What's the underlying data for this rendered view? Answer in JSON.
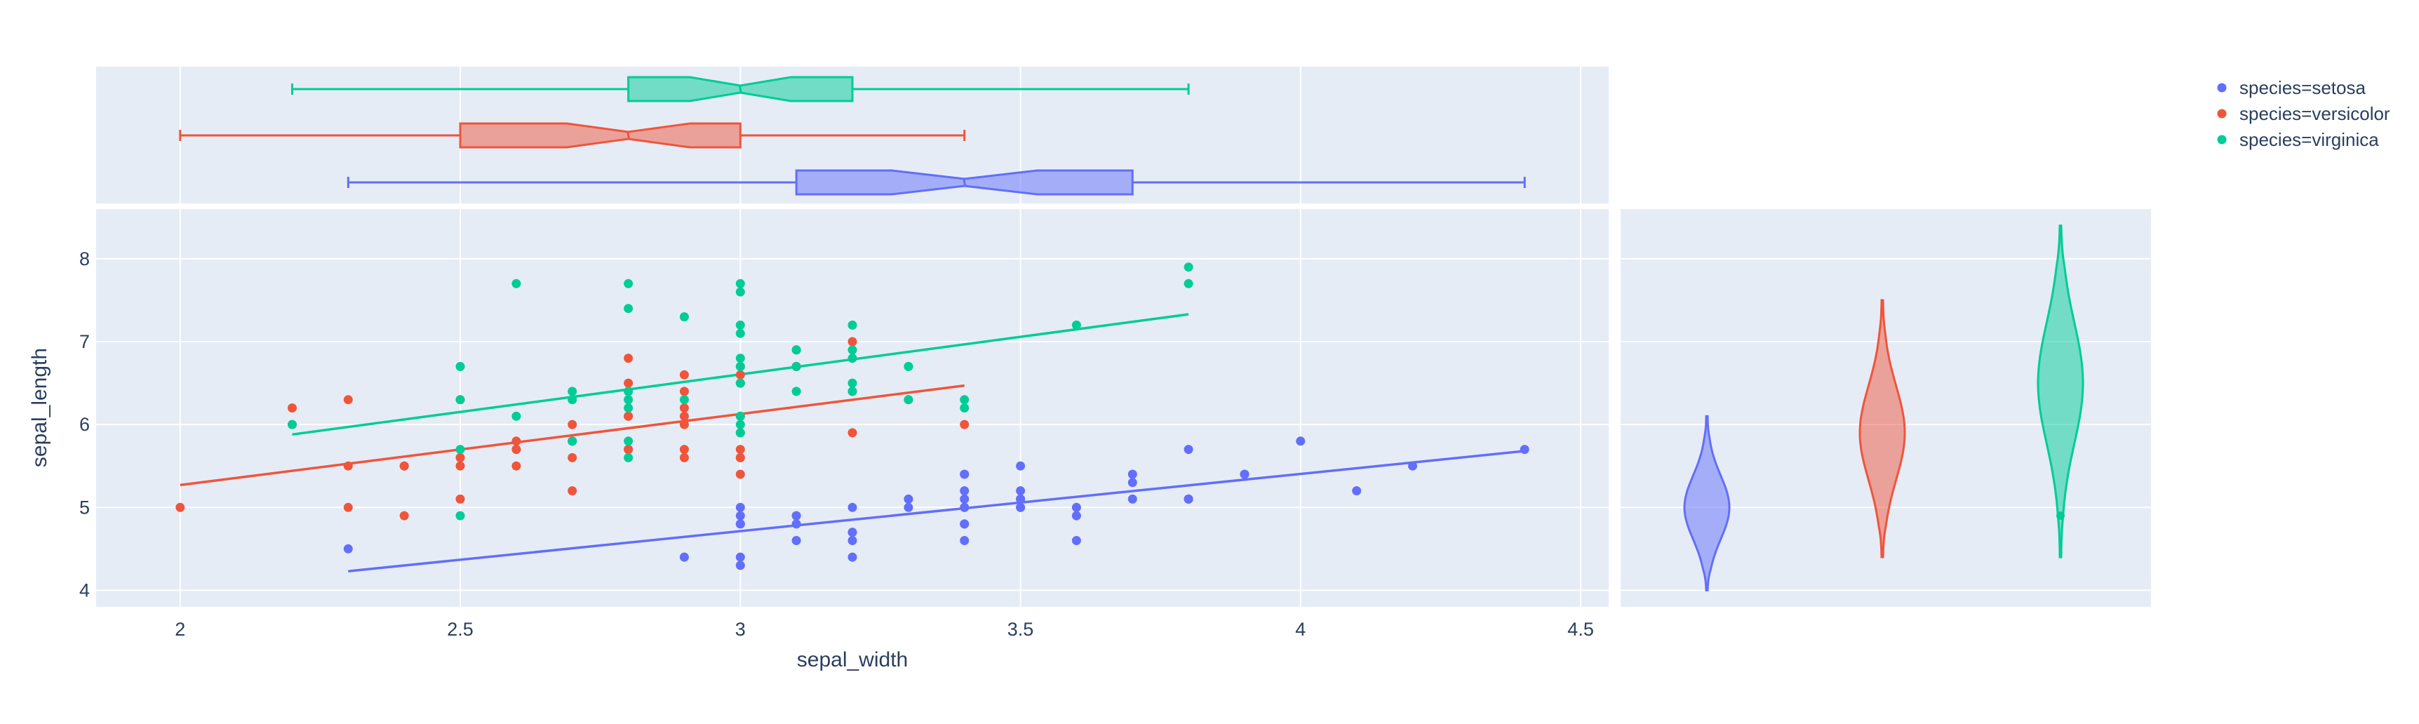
{
  "chart_data": {
    "type": "scatter",
    "xlabel": "sepal_width",
    "ylabel": "sepal_length",
    "xlim": [
      1.85,
      4.55
    ],
    "ylim": [
      3.8,
      8.6
    ],
    "x_ticks": [
      "2",
      "2.5",
      "3",
      "3.5",
      "4",
      "4.5"
    ],
    "y_ticks": [
      "4",
      "5",
      "6",
      "7",
      "8"
    ],
    "grid": true,
    "legend_placement": "top-right",
    "series": [
      {
        "name": "species=setosa",
        "color": "#636efa",
        "points": [
          [
            3.5,
            5.1
          ],
          [
            3.0,
            4.9
          ],
          [
            3.2,
            4.7
          ],
          [
            3.1,
            4.6
          ],
          [
            3.6,
            5.0
          ],
          [
            3.9,
            5.4
          ],
          [
            3.4,
            4.6
          ],
          [
            3.4,
            5.0
          ],
          [
            2.9,
            4.4
          ],
          [
            3.1,
            4.9
          ],
          [
            3.7,
            5.4
          ],
          [
            3.4,
            4.8
          ],
          [
            3.0,
            4.8
          ],
          [
            3.0,
            4.3
          ],
          [
            4.0,
            5.8
          ],
          [
            4.4,
            5.7
          ],
          [
            3.9,
            5.4
          ],
          [
            3.5,
            5.1
          ],
          [
            3.8,
            5.7
          ],
          [
            3.8,
            5.1
          ],
          [
            3.4,
            5.4
          ],
          [
            3.7,
            5.1
          ],
          [
            3.6,
            4.6
          ],
          [
            3.3,
            5.1
          ],
          [
            3.4,
            4.8
          ],
          [
            3.0,
            5.0
          ],
          [
            3.4,
            5.0
          ],
          [
            3.5,
            5.2
          ],
          [
            3.4,
            5.2
          ],
          [
            3.2,
            4.7
          ],
          [
            3.1,
            4.8
          ],
          [
            3.4,
            5.4
          ],
          [
            4.1,
            5.2
          ],
          [
            4.2,
            5.5
          ],
          [
            3.1,
            4.9
          ],
          [
            3.2,
            5.0
          ],
          [
            3.5,
            5.5
          ],
          [
            3.6,
            4.9
          ],
          [
            3.0,
            4.4
          ],
          [
            3.4,
            5.1
          ],
          [
            3.5,
            5.0
          ],
          [
            2.3,
            4.5
          ],
          [
            3.2,
            4.4
          ],
          [
            3.5,
            5.0
          ],
          [
            3.8,
            5.1
          ],
          [
            3.0,
            4.8
          ],
          [
            3.8,
            5.1
          ],
          [
            3.2,
            4.6
          ],
          [
            3.7,
            5.3
          ],
          [
            3.3,
            5.0
          ]
        ],
        "trendline": [
          [
            2.3,
            4.23
          ],
          [
            4.4,
            5.68
          ]
        ],
        "box": {
          "min": 2.3,
          "q1": 3.1,
          "median": 3.4,
          "q3": 3.7,
          "max": 4.4,
          "notch_low": 3.27,
          "notch_high": 3.53
        },
        "violin": {
          "min": 4.0,
          "max": 6.1,
          "peak": 5.0
        }
      },
      {
        "name": "species=versicolor",
        "color": "#EF553B",
        "points": [
          [
            3.2,
            7.0
          ],
          [
            3.2,
            6.4
          ],
          [
            3.1,
            6.9
          ],
          [
            2.3,
            5.5
          ],
          [
            2.8,
            6.5
          ],
          [
            2.8,
            5.7
          ],
          [
            3.3,
            6.3
          ],
          [
            2.4,
            4.9
          ],
          [
            2.9,
            6.6
          ],
          [
            2.7,
            5.2
          ],
          [
            2.0,
            5.0
          ],
          [
            3.0,
            5.9
          ],
          [
            2.2,
            6.0
          ],
          [
            2.9,
            6.1
          ],
          [
            2.9,
            5.6
          ],
          [
            3.1,
            6.7
          ],
          [
            3.0,
            5.6
          ],
          [
            2.7,
            5.8
          ],
          [
            2.2,
            6.2
          ],
          [
            2.5,
            5.6
          ],
          [
            3.2,
            5.9
          ],
          [
            2.8,
            6.1
          ],
          [
            2.5,
            6.3
          ],
          [
            2.8,
            6.1
          ],
          [
            2.9,
            6.4
          ],
          [
            3.0,
            6.6
          ],
          [
            2.8,
            6.8
          ],
          [
            3.0,
            6.7
          ],
          [
            2.9,
            6.0
          ],
          [
            2.6,
            5.7
          ],
          [
            2.4,
            5.5
          ],
          [
            2.4,
            5.5
          ],
          [
            2.7,
            5.8
          ],
          [
            2.7,
            6.0
          ],
          [
            3.0,
            5.4
          ],
          [
            3.4,
            6.0
          ],
          [
            3.1,
            6.7
          ],
          [
            2.3,
            6.3
          ],
          [
            3.0,
            5.6
          ],
          [
            2.5,
            5.5
          ],
          [
            2.6,
            5.5
          ],
          [
            3.0,
            6.1
          ],
          [
            2.6,
            5.8
          ],
          [
            2.3,
            5.0
          ],
          [
            2.7,
            5.6
          ],
          [
            3.0,
            5.7
          ],
          [
            2.9,
            5.7
          ],
          [
            2.9,
            6.2
          ],
          [
            2.5,
            5.1
          ],
          [
            2.8,
            5.7
          ]
        ],
        "trendline": [
          [
            2.0,
            5.27
          ],
          [
            3.4,
            6.47
          ]
        ],
        "box": {
          "min": 2.0,
          "q1": 2.5,
          "median": 2.8,
          "q3": 3.0,
          "max": 3.4,
          "notch_low": 2.69,
          "notch_high": 2.91
        },
        "violin": {
          "min": 4.4,
          "max": 7.5,
          "peak": 5.9
        }
      },
      {
        "name": "species=virginica",
        "color": "#00cc96",
        "points": [
          [
            3.3,
            6.3
          ],
          [
            2.7,
            5.8
          ],
          [
            3.0,
            7.1
          ],
          [
            2.9,
            6.3
          ],
          [
            3.0,
            6.5
          ],
          [
            3.0,
            7.6
          ],
          [
            2.5,
            4.9
          ],
          [
            2.9,
            7.3
          ],
          [
            2.5,
            6.7
          ],
          [
            3.6,
            7.2
          ],
          [
            3.2,
            6.5
          ],
          [
            2.7,
            6.4
          ],
          [
            3.0,
            6.8
          ],
          [
            2.5,
            5.7
          ],
          [
            2.8,
            5.8
          ],
          [
            3.2,
            6.4
          ],
          [
            3.0,
            6.5
          ],
          [
            3.8,
            7.7
          ],
          [
            2.6,
            7.7
          ],
          [
            2.2,
            6.0
          ],
          [
            3.2,
            6.9
          ],
          [
            2.8,
            5.6
          ],
          [
            2.8,
            7.7
          ],
          [
            2.7,
            6.3
          ],
          [
            3.3,
            6.7
          ],
          [
            3.2,
            7.2
          ],
          [
            2.8,
            6.2
          ],
          [
            3.0,
            6.1
          ],
          [
            2.8,
            6.4
          ],
          [
            3.0,
            7.2
          ],
          [
            2.8,
            7.4
          ],
          [
            3.8,
            7.9
          ],
          [
            2.8,
            6.4
          ],
          [
            2.8,
            6.3
          ],
          [
            2.6,
            6.1
          ],
          [
            3.0,
            7.7
          ],
          [
            3.4,
            6.3
          ],
          [
            3.1,
            6.4
          ],
          [
            3.0,
            6.0
          ],
          [
            3.1,
            6.9
          ],
          [
            3.1,
            6.7
          ],
          [
            3.1,
            6.9
          ],
          [
            2.7,
            5.8
          ],
          [
            3.2,
            6.8
          ],
          [
            3.3,
            6.7
          ],
          [
            3.0,
            6.7
          ],
          [
            2.5,
            6.3
          ],
          [
            3.0,
            6.5
          ],
          [
            3.4,
            6.2
          ],
          [
            3.0,
            5.9
          ]
        ],
        "trendline": [
          [
            2.2,
            5.88
          ],
          [
            3.8,
            7.33
          ]
        ],
        "box": {
          "min": 2.2,
          "q1": 2.8,
          "median": 3.0,
          "q3": 3.2,
          "max": 3.8,
          "notch_low": 2.91,
          "notch_high": 3.09
        },
        "violin": {
          "min": 4.4,
          "max": 8.4,
          "peak": 6.5
        }
      }
    ]
  }
}
